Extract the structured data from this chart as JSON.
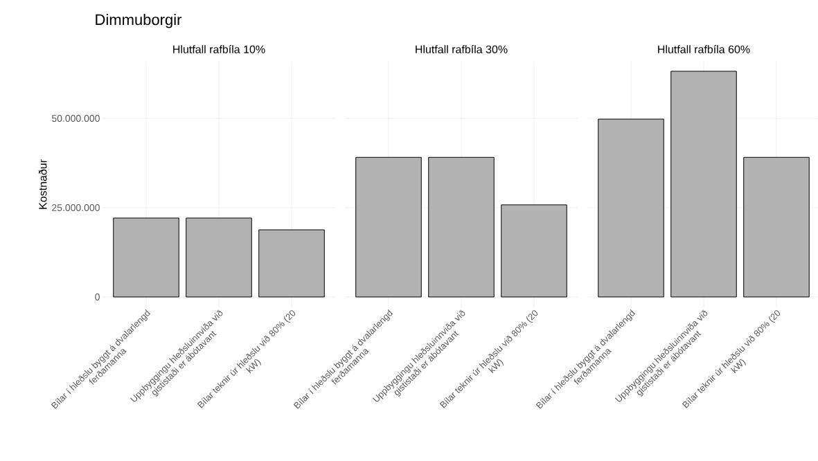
{
  "chart_data": [
    {
      "type": "bar",
      "title": "Dimmuborgir",
      "subtitle": "Hlutfall rafbíla 10%",
      "ylabel": "Kostnaður",
      "categories": [
        "Bílar í hleðslu byggt á dvalarlengd ferðamanna",
        "Uppbyggingu hleðsluinnviða við gististaði er ábótavant",
        "Bílar teknir úr hleðslu við 80% (20 kW)"
      ],
      "values": [
        22100000,
        22100000,
        18800000
      ],
      "color": "#b3b3b3",
      "ylim": [
        -3000000,
        66000000
      ],
      "yticks": [
        0,
        {
          "value": 25000000,
          "label": "25.000.000"
        },
        {
          "value": 50000000,
          "label": "50.000.000"
        }
      ],
      "grid": true
    },
    {
      "type": "bar",
      "subtitle": "Hlutfall rafbíla 30%",
      "categories": [
        "Bílar í hleðslu byggt á dvalarlengd ferðamanna",
        "Uppbyggingu hleðsluinnviða við gististaði er ábótavant",
        "Bílar teknir úr hleðslu við 80% (20 kW)"
      ],
      "values": [
        39100000,
        39100000,
        25800000
      ],
      "color": "#b3b3b3",
      "ylim": [
        -3000000,
        66000000
      ],
      "yticks": [
        {
          "value": 0,
          "label": null
        },
        {
          "value": 25000000,
          "label": null
        },
        {
          "value": 50000000,
          "label": null
        }
      ],
      "grid": true,
      "tick_labels": "x"
    },
    {
      "type": "bar",
      "subtitle": "Hlutfall rafbíla 60%",
      "categories": [
        "Bílar í hleðslu byggt á dvalarlengd ferðamanna",
        "Uppbyggingu hleðsluinnviða við gististaði er ábótavant",
        "Bílar teknir úr hleðslu við 80% (20 kW)"
      ],
      "values": [
        49800000,
        63200000,
        39100000
      ],
      "color": "#b3b3b3",
      "ylim": [
        -3000000,
        66000000
      ],
      "yticks": [
        {
          "value": 0,
          "label": null
        },
        {
          "value": 25000000,
          "label": null
        },
        {
          "value": 50000000,
          "label": null
        }
      ],
      "grid": true,
      "tick_labels": "x"
    }
  ]
}
